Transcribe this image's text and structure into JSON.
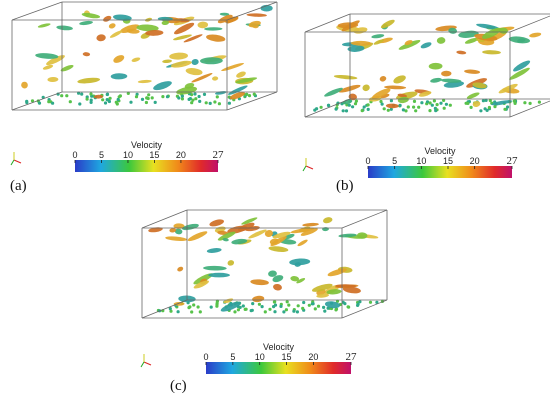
{
  "panels": [
    {
      "label": "(a)",
      "colorbar": {
        "title": "Velocity",
        "ticks": [
          0,
          5,
          10,
          15,
          20,
          27
        ]
      }
    },
    {
      "label": "(b)",
      "colorbar": {
        "title": "Velocity",
        "ticks": [
          0,
          5,
          10,
          15,
          20,
          27
        ]
      }
    },
    {
      "label": "(c)",
      "colorbar": {
        "title": "Velocity",
        "ticks": [
          0,
          5,
          10,
          15,
          20,
          27
        ]
      }
    }
  ]
}
